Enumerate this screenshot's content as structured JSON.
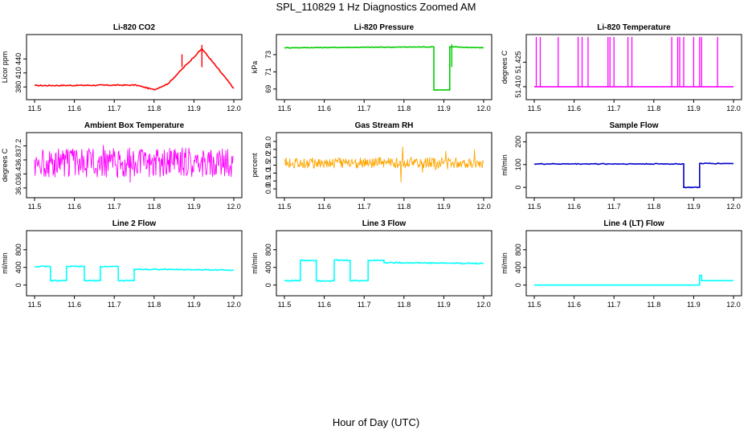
{
  "figure": {
    "title": "SPL_110829  1 Hz Diagnostics Zoomed AM",
    "xlabel": "Hour of Day (UTC)"
  },
  "chart_data": [
    {
      "type": "line",
      "title": "Li-820 CO2",
      "ylabel": "Licor ppm",
      "color": "#ff0000",
      "xlim": [
        11.5,
        12.0
      ],
      "ylim": [
        370,
        475
      ],
      "xticks": [
        "11.5",
        "11.6",
        "11.7",
        "11.8",
        "11.9",
        "12.0"
      ],
      "yticks": [
        380,
        410,
        440
      ],
      "noise": 1.2,
      "series": [
        {
          "x": [
            11.5,
            11.755,
            11.755,
            11.8,
            11.8,
            11.835,
            11.835,
            11.92,
            11.92,
            12.0
          ],
          "y": [
            383,
            384,
            384,
            374,
            374,
            387,
            387,
            462,
            462,
            377
          ]
        }
      ],
      "spikes": [
        {
          "x": 11.92,
          "y": 470
        },
        {
          "x": 11.87,
          "y": 450
        }
      ]
    },
    {
      "type": "line",
      "title": "Li-820 Pressure",
      "ylabel": "kPa",
      "color": "#00cc00",
      "xlim": [
        11.5,
        12.0
      ],
      "ylim": [
        68.7,
        74.4
      ],
      "xticks": [
        "11.5",
        "11.6",
        "11.7",
        "11.8",
        "11.9",
        "12.0"
      ],
      "yticks": [
        69,
        71,
        73
      ],
      "noise": 0.04,
      "series": [
        {
          "x": [
            11.5,
            11.875,
            11.875,
            11.915,
            11.915,
            12.0
          ],
          "y": [
            73.8,
            73.9,
            68.9,
            68.9,
            73.9,
            73.8
          ]
        }
      ],
      "spikes": [
        {
          "x": 11.92,
          "y": 74.2
        }
      ]
    },
    {
      "type": "line",
      "title": "Li-820 Temperature",
      "ylabel": "degrees C",
      "color": "#ff00ff",
      "xlim": [
        11.5,
        12.0
      ],
      "ylim": [
        51.407,
        51.437
      ],
      "xticks": [
        "11.5",
        "11.6",
        "11.7",
        "11.8",
        "11.9",
        "12.0"
      ],
      "yticks": [
        "51.410",
        "51.425"
      ],
      "noise": 0,
      "series": [
        {
          "x": [
            11.5,
            12.0
          ],
          "y": [
            51.41,
            51.41
          ]
        }
      ],
      "spikes_to_top": [
        11.505,
        11.515,
        11.56,
        11.61,
        11.62,
        11.635,
        11.685,
        11.69,
        11.7,
        11.735,
        11.745,
        11.845,
        11.86,
        11.865,
        11.875,
        11.9,
        11.915,
        11.92,
        11.96
      ]
    },
    {
      "type": "line",
      "title": "Ambient Box Temperature",
      "ylabel": "degrees C",
      "color": "#ff00ff",
      "xlim": [
        11.5,
        12.0
      ],
      "ylim": [
        35.95,
        37.35
      ],
      "xticks": [
        "11.5",
        "11.6",
        "11.7",
        "11.8",
        "11.9",
        "12.0"
      ],
      "yticks": [
        "36.0",
        "36.4",
        "36.8",
        "37.2"
      ],
      "band": {
        "low": 36.3,
        "high": 37.15,
        "min": 36.05,
        "max": 37.25,
        "step": 0.0015
      }
    },
    {
      "type": "line",
      "title": "Gas Stream RH",
      "ylabel": "percent",
      "color": "#ffa500",
      "xlim": [
        11.5,
        12.0
      ],
      "ylim": [
        -0.05,
        3.05
      ],
      "xticks": [
        "11.5",
        "11.6",
        "11.7",
        "11.8",
        "11.9",
        "12.0"
      ],
      "yticks": [
        "0.0",
        "0.5",
        "1.0",
        "1.5",
        "2.0",
        "2.5",
        "3.0"
      ],
      "band": {
        "low": 1.3,
        "high": 2.0,
        "min": 0.1,
        "max": 2.9,
        "step": 0.0015
      }
    },
    {
      "type": "line",
      "title": "Sample Flow",
      "ylabel": "ml/min",
      "color": "#0000cc",
      "xlim": [
        11.5,
        12.0
      ],
      "ylim": [
        -10,
        205
      ],
      "xticks": [
        "11.5",
        "11.6",
        "11.7",
        "11.8",
        "11.9",
        "12.0"
      ],
      "yticks": [
        0,
        100,
        200
      ],
      "noise": 2,
      "series": [
        {
          "x": [
            11.5,
            11.875,
            11.875,
            11.915,
            11.915,
            12.0
          ],
          "y": [
            103,
            103,
            0,
            0,
            105,
            105
          ]
        }
      ]
    },
    {
      "type": "line",
      "title": "Line 2 Flow",
      "ylabel": "ml/min",
      "color": "#00ffff",
      "xlim": [
        11.5,
        12.0
      ],
      "ylim": [
        -60,
        1050
      ],
      "xticks": [
        "11.5",
        "11.6",
        "11.7",
        "11.8",
        "11.9",
        "12.0"
      ],
      "yticks": [
        0,
        400,
        800
      ],
      "noise": 12,
      "series": [
        {
          "x": [
            11.5,
            11.54,
            11.54,
            11.58,
            11.58,
            11.625,
            11.625,
            11.665,
            11.665,
            11.71,
            11.71,
            11.75,
            11.75,
            12.0
          ],
          "y": [
            420,
            420,
            100,
            100,
            420,
            420,
            100,
            100,
            420,
            420,
            100,
            100,
            360,
            340
          ]
        }
      ]
    },
    {
      "type": "line",
      "title": "Line 3 Flow",
      "ylabel": "ml/min",
      "color": "#00ffff",
      "xlim": [
        11.5,
        12.0
      ],
      "ylim": [
        -60,
        1050
      ],
      "xticks": [
        "11.5",
        "11.6",
        "11.7",
        "11.8",
        "11.9",
        "12.0"
      ],
      "yticks": [
        0,
        400,
        800
      ],
      "noise": 14,
      "series": [
        {
          "x": [
            11.5,
            11.54,
            11.54,
            11.58,
            11.58,
            11.625,
            11.625,
            11.665,
            11.665,
            11.71,
            11.71,
            11.75,
            11.75,
            12.0
          ],
          "y": [
            100,
            100,
            560,
            560,
            100,
            100,
            560,
            560,
            100,
            100,
            560,
            560,
            510,
            490
          ]
        }
      ]
    },
    {
      "type": "line",
      "title": "Line 4 (LT) Flow",
      "ylabel": "ml/min",
      "color": "#00ffff",
      "xlim": [
        11.5,
        12.0
      ],
      "ylim": [
        -60,
        1050
      ],
      "xticks": [
        "11.5",
        "11.6",
        "11.7",
        "11.8",
        "11.9",
        "12.0"
      ],
      "yticks": [
        0,
        400,
        800
      ],
      "noise": 0,
      "series": [
        {
          "x": [
            11.5,
            11.915,
            11.915,
            11.92,
            11.92,
            12.0
          ],
          "y": [
            0,
            0,
            220,
            220,
            100,
            100
          ]
        }
      ]
    }
  ]
}
